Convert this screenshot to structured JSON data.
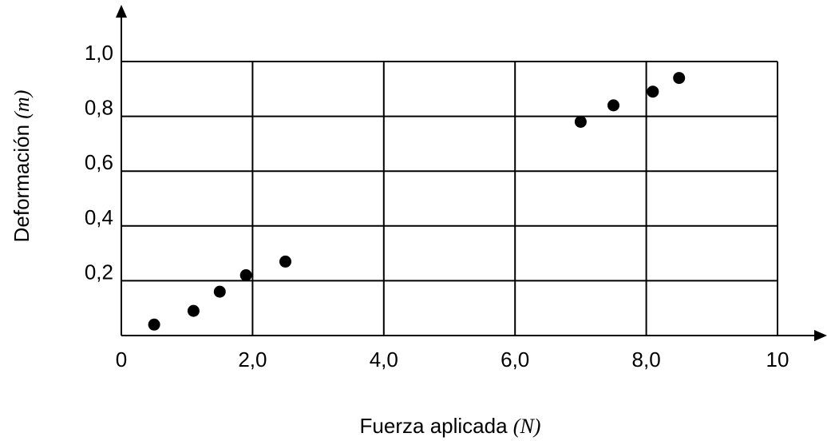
{
  "chart_data": {
    "type": "scatter",
    "xlabel": "Fuerza aplicada",
    "xunit": "(N)",
    "ylabel": "Deformación",
    "yunit": "(m)",
    "xlim": [
      0,
      10
    ],
    "ylim": [
      0,
      1.0
    ],
    "xticks": [
      {
        "value": 0,
        "label": "0"
      },
      {
        "value": 2,
        "label": "2,0"
      },
      {
        "value": 4,
        "label": "4,0"
      },
      {
        "value": 6,
        "label": "6,0"
      },
      {
        "value": 8,
        "label": "8,0"
      },
      {
        "value": 10,
        "label": "10"
      }
    ],
    "yticks": [
      {
        "value": 0.2,
        "label": "0,2"
      },
      {
        "value": 0.4,
        "label": "0,4"
      },
      {
        "value": 0.6,
        "label": "0,6"
      },
      {
        "value": 0.8,
        "label": "0,8"
      },
      {
        "value": 1.0,
        "label": "1,0"
      }
    ],
    "grid": true,
    "series": [
      {
        "points": [
          {
            "x": 0.5,
            "y": 0.04
          },
          {
            "x": 1.1,
            "y": 0.09
          },
          {
            "x": 1.5,
            "y": 0.16
          },
          {
            "x": 1.9,
            "y": 0.22
          },
          {
            "x": 2.5,
            "y": 0.27
          },
          {
            "x": 7.0,
            "y": 0.78
          },
          {
            "x": 7.5,
            "y": 0.84
          },
          {
            "x": 8.1,
            "y": 0.89
          },
          {
            "x": 8.5,
            "y": 0.94
          }
        ]
      }
    ],
    "marker_color": "#000000",
    "grid_color": "#000000"
  }
}
